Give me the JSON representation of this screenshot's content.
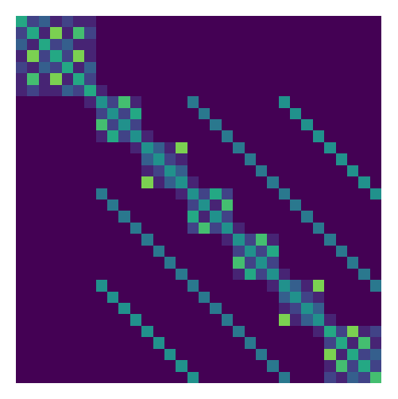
{
  "chart_data": {
    "type": "heatmap",
    "color": "Viridis",
    "tick_labels": false,
    "zlim": [
      0,
      10
    ],
    "cells": [
      [
        6,
        2,
        3,
        1,
        2,
        1,
        1,
        0,
        0,
        0,
        0,
        0,
        0,
        0,
        0,
        0,
        0,
        0,
        0,
        0,
        0,
        0,
        0,
        0,
        0,
        0,
        0,
        0,
        0,
        0,
        0,
        0
      ],
      [
        2,
        6,
        1,
        8,
        1,
        7,
        2,
        0,
        0,
        0,
        0,
        0,
        0,
        0,
        0,
        0,
        0,
        0,
        0,
        0,
        0,
        0,
        0,
        0,
        0,
        0,
        0,
        0,
        0,
        0,
        0,
        0
      ],
      [
        3,
        1,
        6,
        2,
        3,
        1,
        1,
        0,
        0,
        0,
        0,
        0,
        0,
        0,
        0,
        0,
        0,
        0,
        0,
        0,
        0,
        0,
        0,
        0,
        0,
        0,
        0,
        0,
        0,
        0,
        0,
        0
      ],
      [
        1,
        8,
        2,
        6,
        2,
        8,
        1,
        0,
        0,
        0,
        0,
        0,
        0,
        0,
        0,
        0,
        0,
        0,
        0,
        0,
        0,
        0,
        0,
        0,
        0,
        0,
        0,
        0,
        0,
        0,
        0,
        0
      ],
      [
        2,
        1,
        3,
        2,
        6,
        1,
        3,
        0,
        0,
        0,
        0,
        0,
        0,
        0,
        0,
        0,
        0,
        0,
        0,
        0,
        0,
        0,
        0,
        0,
        0,
        0,
        0,
        0,
        0,
        0,
        0,
        0
      ],
      [
        1,
        7,
        1,
        8,
        1,
        6,
        2,
        0,
        0,
        0,
        0,
        0,
        0,
        0,
        0,
        0,
        0,
        0,
        0,
        0,
        0,
        0,
        0,
        0,
        0,
        0,
        0,
        0,
        0,
        0,
        0,
        0
      ],
      [
        1,
        2,
        1,
        1,
        3,
        2,
        6,
        1,
        0,
        0,
        0,
        0,
        0,
        0,
        0,
        0,
        0,
        0,
        0,
        0,
        0,
        0,
        0,
        0,
        0,
        0,
        0,
        0,
        0,
        0,
        0,
        0
      ],
      [
        0,
        0,
        0,
        0,
        0,
        0,
        1,
        5,
        2,
        7,
        1,
        0,
        0,
        0,
        0,
        4,
        0,
        0,
        0,
        0,
        0,
        0,
        0,
        5,
        0,
        0,
        0,
        0,
        0,
        0,
        0,
        0
      ],
      [
        0,
        0,
        0,
        0,
        0,
        0,
        0,
        2,
        5,
        2,
        6,
        0,
        0,
        0,
        0,
        0,
        4,
        0,
        0,
        0,
        0,
        0,
        0,
        0,
        5,
        0,
        0,
        0,
        0,
        0,
        0,
        0
      ],
      [
        0,
        0,
        0,
        0,
        0,
        0,
        0,
        7,
        2,
        5,
        2,
        0,
        0,
        0,
        0,
        0,
        0,
        4,
        0,
        0,
        0,
        0,
        0,
        0,
        0,
        5,
        0,
        0,
        0,
        0,
        0,
        0
      ],
      [
        0,
        0,
        0,
        0,
        0,
        0,
        0,
        1,
        6,
        2,
        5,
        1,
        0,
        0,
        0,
        0,
        0,
        0,
        4,
        0,
        0,
        0,
        0,
        0,
        0,
        0,
        5,
        0,
        0,
        0,
        0,
        0
      ],
      [
        0,
        0,
        0,
        0,
        0,
        0,
        0,
        0,
        0,
        0,
        1,
        5,
        3,
        1,
        8,
        0,
        0,
        0,
        0,
        4,
        0,
        0,
        0,
        0,
        0,
        0,
        0,
        5,
        0,
        0,
        0,
        0
      ],
      [
        0,
        0,
        0,
        0,
        0,
        0,
        0,
        0,
        0,
        0,
        0,
        3,
        5,
        2,
        1,
        0,
        0,
        0,
        0,
        0,
        4,
        0,
        0,
        0,
        0,
        0,
        0,
        0,
        5,
        0,
        0,
        0
      ],
      [
        0,
        0,
        0,
        0,
        0,
        0,
        0,
        0,
        0,
        0,
        0,
        1,
        2,
        5,
        3,
        0,
        0,
        0,
        0,
        0,
        0,
        4,
        0,
        0,
        0,
        0,
        0,
        0,
        0,
        5,
        0,
        0
      ],
      [
        0,
        0,
        0,
        0,
        0,
        0,
        0,
        0,
        0,
        0,
        0,
        8,
        1,
        3,
        5,
        1,
        0,
        0,
        0,
        0,
        0,
        0,
        4,
        0,
        0,
        0,
        0,
        0,
        0,
        0,
        5,
        0
      ],
      [
        0,
        0,
        0,
        0,
        0,
        0,
        0,
        4,
        0,
        0,
        0,
        0,
        0,
        0,
        1,
        5,
        2,
        6,
        2,
        0,
        0,
        0,
        0,
        4,
        0,
        0,
        0,
        0,
        0,
        0,
        0,
        5
      ],
      [
        0,
        0,
        0,
        0,
        0,
        0,
        0,
        0,
        4,
        0,
        0,
        0,
        0,
        0,
        0,
        2,
        5,
        1,
        7,
        0,
        0,
        0,
        0,
        0,
        4,
        0,
        0,
        0,
        0,
        0,
        0,
        0
      ],
      [
        0,
        0,
        0,
        0,
        0,
        0,
        0,
        0,
        0,
        4,
        0,
        0,
        0,
        0,
        0,
        6,
        1,
        5,
        2,
        0,
        0,
        0,
        0,
        0,
        0,
        4,
        0,
        0,
        0,
        0,
        0,
        0
      ],
      [
        0,
        0,
        0,
        0,
        0,
        0,
        0,
        0,
        0,
        0,
        4,
        0,
        0,
        0,
        0,
        2,
        7,
        2,
        5,
        1,
        0,
        0,
        0,
        0,
        0,
        0,
        4,
        0,
        0,
        0,
        0,
        0
      ],
      [
        0,
        0,
        0,
        0,
        0,
        0,
        0,
        0,
        0,
        0,
        0,
        4,
        0,
        0,
        0,
        0,
        0,
        0,
        1,
        5,
        2,
        7,
        1,
        0,
        0,
        0,
        0,
        4,
        0,
        0,
        0,
        0
      ],
      [
        0,
        0,
        0,
        0,
        0,
        0,
        0,
        0,
        0,
        0,
        0,
        0,
        4,
        0,
        0,
        0,
        0,
        0,
        0,
        2,
        5,
        2,
        6,
        0,
        0,
        0,
        0,
        0,
        4,
        0,
        0,
        0
      ],
      [
        0,
        0,
        0,
        0,
        0,
        0,
        0,
        0,
        0,
        0,
        0,
        0,
        0,
        4,
        0,
        0,
        0,
        0,
        0,
        7,
        2,
        5,
        2,
        0,
        0,
        0,
        0,
        0,
        0,
        4,
        0,
        0
      ],
      [
        0,
        0,
        0,
        0,
        0,
        0,
        0,
        0,
        0,
        0,
        0,
        0,
        0,
        0,
        4,
        0,
        0,
        0,
        0,
        1,
        6,
        2,
        5,
        1,
        0,
        0,
        0,
        0,
        0,
        0,
        4,
        0
      ],
      [
        0,
        0,
        0,
        0,
        0,
        0,
        0,
        5,
        0,
        0,
        0,
        0,
        0,
        0,
        0,
        4,
        0,
        0,
        0,
        0,
        0,
        0,
        1,
        5,
        3,
        1,
        8,
        0,
        0,
        0,
        0,
        4
      ],
      [
        0,
        0,
        0,
        0,
        0,
        0,
        0,
        0,
        5,
        0,
        0,
        0,
        0,
        0,
        0,
        0,
        4,
        0,
        0,
        0,
        0,
        0,
        0,
        3,
        5,
        2,
        1,
        0,
        0,
        0,
        0,
        0
      ],
      [
        0,
        0,
        0,
        0,
        0,
        0,
        0,
        0,
        0,
        5,
        0,
        0,
        0,
        0,
        0,
        0,
        0,
        4,
        0,
        0,
        0,
        0,
        0,
        1,
        2,
        5,
        3,
        0,
        0,
        0,
        0,
        0
      ],
      [
        0,
        0,
        0,
        0,
        0,
        0,
        0,
        0,
        0,
        0,
        5,
        0,
        0,
        0,
        0,
        0,
        0,
        0,
        4,
        0,
        0,
        0,
        0,
        8,
        1,
        3,
        5,
        1,
        0,
        0,
        0,
        0
      ],
      [
        0,
        0,
        0,
        0,
        0,
        0,
        0,
        0,
        0,
        0,
        0,
        5,
        0,
        0,
        0,
        0,
        0,
        0,
        0,
        4,
        0,
        0,
        0,
        0,
        0,
        0,
        1,
        6,
        2,
        8,
        1,
        2
      ],
      [
        0,
        0,
        0,
        0,
        0,
        0,
        0,
        0,
        0,
        0,
        0,
        0,
        5,
        0,
        0,
        0,
        0,
        0,
        0,
        0,
        4,
        0,
        0,
        0,
        0,
        0,
        0,
        2,
        6,
        1,
        7,
        1
      ],
      [
        0,
        0,
        0,
        0,
        0,
        0,
        0,
        0,
        0,
        0,
        0,
        0,
        0,
        5,
        0,
        0,
        0,
        0,
        0,
        0,
        0,
        4,
        0,
        0,
        0,
        0,
        0,
        8,
        1,
        6,
        2,
        3
      ],
      [
        0,
        0,
        0,
        0,
        0,
        0,
        0,
        0,
        0,
        0,
        0,
        0,
        0,
        0,
        5,
        0,
        0,
        0,
        0,
        0,
        0,
        0,
        4,
        0,
        0,
        0,
        0,
        1,
        7,
        2,
        6,
        2
      ],
      [
        0,
        0,
        0,
        0,
        0,
        0,
        0,
        0,
        0,
        0,
        0,
        0,
        0,
        0,
        0,
        5,
        0,
        0,
        0,
        0,
        0,
        0,
        0,
        4,
        0,
        0,
        0,
        2,
        1,
        3,
        2,
        7
      ]
    ]
  }
}
